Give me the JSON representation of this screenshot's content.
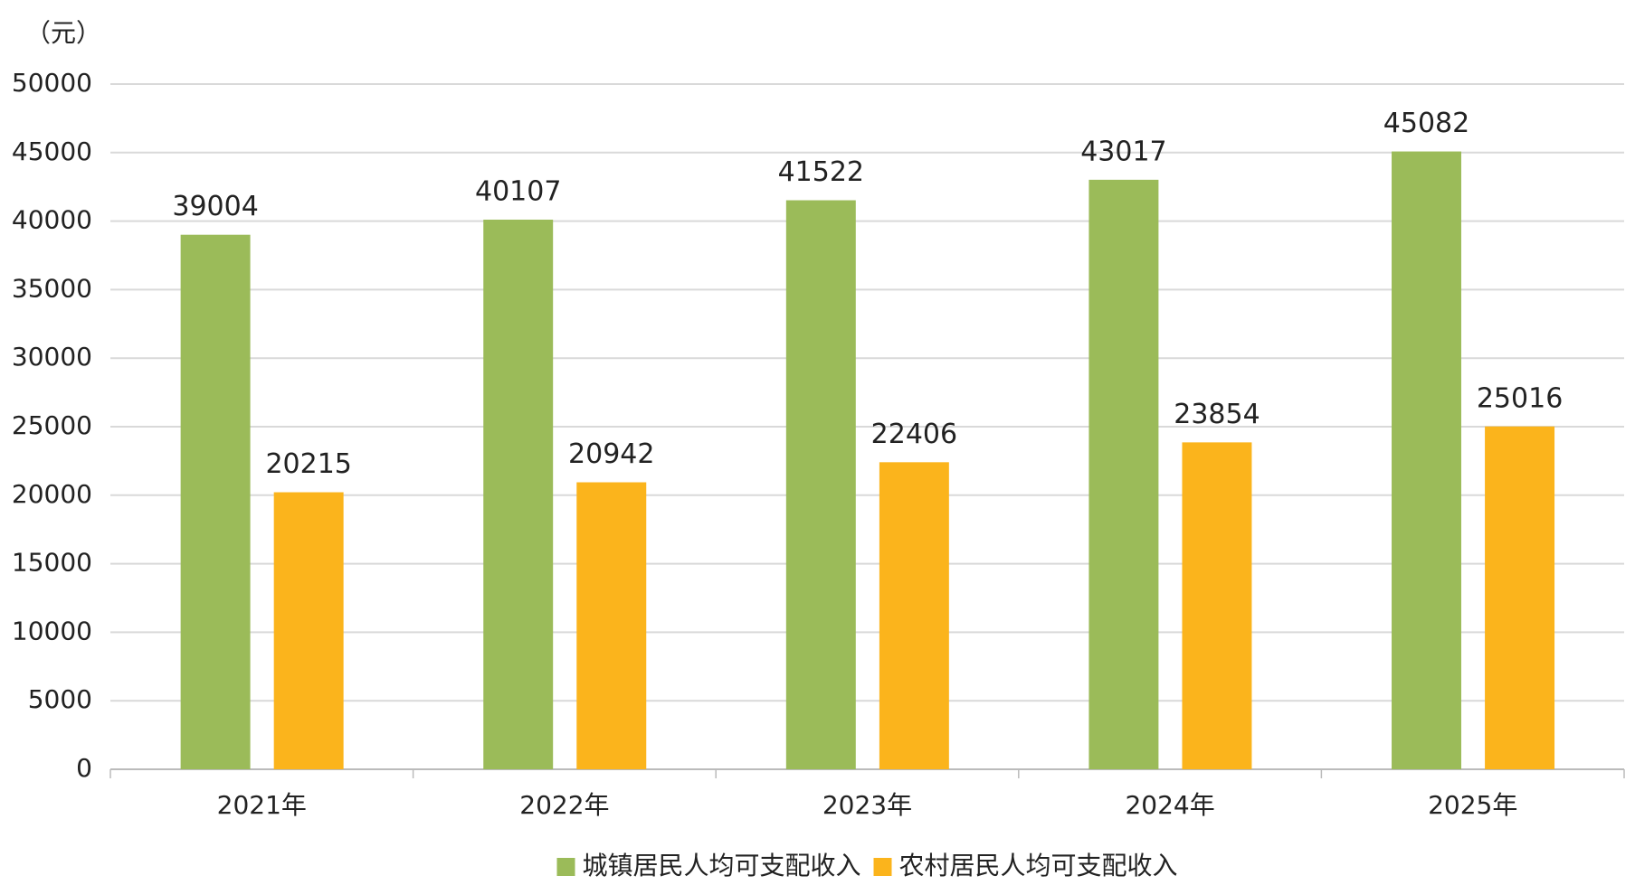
{
  "chart_data": {
    "type": "bar",
    "y_label": "（元）",
    "categories": [
      "2021年",
      "2022年",
      "2023年",
      "2024年",
      "2025年"
    ],
    "series": [
      {
        "name": "城镇居民人均可支配收入",
        "color": "#9bbb59",
        "values": [
          39004,
          40107,
          41522,
          43017,
          45082
        ]
      },
      {
        "name": "农村居民人均可支配收入",
        "color": "#fbb41c",
        "values": [
          20215,
          20942,
          22406,
          23854,
          25016
        ]
      }
    ],
    "ylim": [
      0,
      50000
    ],
    "yticks": [
      0,
      5000,
      10000,
      15000,
      20000,
      25000,
      30000,
      35000,
      40000,
      45000,
      50000
    ],
    "grid": true,
    "legend": "bottom"
  }
}
